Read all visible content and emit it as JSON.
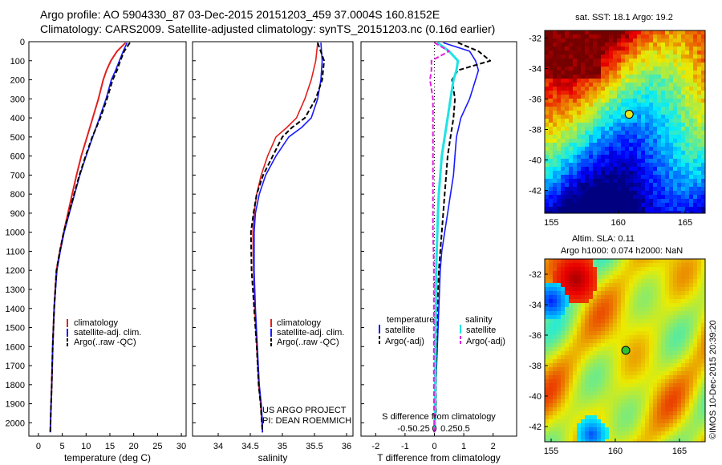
{
  "header": {
    "line1": "Argo profile: AO 5904330_87 03-Dec-2015 20151203_459 37.0004S 160.8152E",
    "line2": "Climatology: CARS2009. Satellite-adjusted climatology: synTS_20151203.nc (0.16d earlier)"
  },
  "colors": {
    "climatology": "#e02020",
    "satellite": "#1a1aff",
    "argo": "#000000",
    "temp_satellite": "#1a1aff",
    "sal_satellite": "#1fe3e3",
    "sal_argo": "#e020e0"
  },
  "panels": {
    "temperature": {
      "xlabel": "temperature (deg C)",
      "legend": [
        "climatology",
        "satellite-adj. clim.",
        "Argo(..raw -QC)"
      ]
    },
    "salinity": {
      "xlabel": "salinity",
      "legend": [
        "climatology",
        "satellite-adj. clim.",
        "Argo(..raw -QC)"
      ],
      "credit1": "US ARGO PROJECT",
      "credit2": "PI: DEAN ROEMMICH"
    },
    "difference": {
      "xlabel": "T difference from climatology",
      "top_label": "S difference from climatology",
      "legend_left_title": "temperature",
      "legend_left": [
        "satellite",
        "Argo(-adj)"
      ],
      "legend_right_title": "salinity",
      "legend_right": [
        "satellite",
        "Argo(-adj)"
      ]
    },
    "sst_map": {
      "title": "sat. SST: 18.1  Argo: 19.2"
    },
    "sla_map": {
      "title1": "Altim. SLA: 0.11",
      "title2": "Argo h1000: 0.074  h2000: NaN",
      "side_label": "©IMOS 10-Dec-2015 20:39:20"
    }
  },
  "chart_data": [
    {
      "type": "line",
      "title": "",
      "xlabel": "temperature (deg C)",
      "ylabel": "",
      "xlim": [
        -2,
        31
      ],
      "ylim": [
        2070,
        0
      ],
      "yticks": [
        0,
        100,
        200,
        300,
        400,
        500,
        600,
        700,
        800,
        900,
        1000,
        1100,
        1200,
        1300,
        1400,
        1500,
        1600,
        1700,
        1800,
        1900,
        2000
      ],
      "xticks": [
        0,
        5,
        10,
        15,
        20,
        25,
        30
      ],
      "series": [
        {
          "name": "climatology",
          "x": [
            18.3,
            16.5,
            15.2,
            14.3,
            13.6,
            12.6,
            11.4,
            10.2,
            9.0,
            8.0,
            7.1,
            6.2,
            5.3,
            4.5,
            3.8,
            3.3,
            3.0,
            2.8,
            2.6,
            2.5
          ],
          "y": [
            5,
            50,
            100,
            150,
            200,
            300,
            400,
            500,
            600,
            700,
            800,
            900,
            1000,
            1100,
            1200,
            1400,
            1600,
            1800,
            1950,
            2050
          ]
        },
        {
          "name": "satellite-adj. clim.",
          "x": [
            18.6,
            17.8,
            17.0,
            16.2,
            15.3,
            14.2,
            12.8,
            11.4,
            10.0,
            8.7,
            7.6,
            6.5,
            5.4,
            4.6,
            3.9,
            3.3,
            3.0,
            2.8,
            2.6,
            2.5
          ],
          "y": [
            5,
            50,
            100,
            150,
            200,
            300,
            400,
            500,
            600,
            700,
            800,
            900,
            1000,
            1100,
            1200,
            1400,
            1600,
            1800,
            1950,
            2050
          ]
        },
        {
          "name": "Argo(..raw -QC)",
          "x": [
            19.2,
            18.0,
            17.2,
            16.5,
            15.6,
            14.4,
            13.0,
            11.3,
            9.9,
            8.6,
            7.5,
            6.4,
            5.3,
            4.5,
            3.8,
            3.3,
            3.0,
            2.8,
            2.6,
            2.5
          ],
          "y": [
            5,
            50,
            100,
            150,
            200,
            300,
            400,
            500,
            600,
            700,
            800,
            900,
            1000,
            1100,
            1200,
            1400,
            1600,
            1800,
            1950,
            2050
          ]
        }
      ]
    },
    {
      "type": "line",
      "title": "",
      "xlabel": "salinity",
      "ylabel": "",
      "xlim": [
        33.6,
        36.1
      ],
      "ylim": [
        2070,
        0
      ],
      "xticks": [
        34,
        34.5,
        35,
        35.5,
        36
      ],
      "series": [
        {
          "name": "climatology",
          "x": [
            35.55,
            35.52,
            35.45,
            35.35,
            35.22,
            35.07,
            34.9,
            34.77,
            34.67,
            34.6,
            34.56,
            34.54,
            34.55,
            34.57,
            34.6,
            34.63,
            34.66,
            34.68,
            34.69
          ],
          "y": [
            5,
            100,
            200,
            300,
            400,
            450,
            500,
            600,
            700,
            800,
            900,
            1000,
            1200,
            1400,
            1600,
            1800,
            1900,
            2000,
            2050
          ]
        },
        {
          "name": "satellite-adj. clim.",
          "x": [
            35.6,
            35.62,
            35.6,
            35.55,
            35.45,
            35.3,
            35.1,
            34.9,
            34.74,
            34.64,
            34.58,
            34.56,
            34.56,
            34.58,
            34.61,
            34.64,
            34.67,
            34.69,
            34.69
          ],
          "y": [
            5,
            100,
            200,
            300,
            400,
            450,
            500,
            600,
            700,
            800,
            900,
            1000,
            1200,
            1400,
            1600,
            1800,
            1900,
            2000,
            2050
          ]
        },
        {
          "name": "Argo(..raw -QC)",
          "x": [
            35.55,
            35.65,
            35.62,
            35.52,
            35.35,
            35.15,
            35.0,
            34.85,
            34.7,
            34.6,
            34.55,
            34.51,
            34.52,
            34.56,
            34.6,
            34.63,
            34.66,
            34.68,
            34.69
          ],
          "y": [
            5,
            100,
            200,
            300,
            400,
            450,
            500,
            600,
            700,
            800,
            900,
            1000,
            1200,
            1400,
            1600,
            1800,
            1900,
            2000,
            2050
          ]
        }
      ]
    },
    {
      "type": "line",
      "title": "",
      "xlabel": "T difference from climatology",
      "top_label": "S difference from climatology",
      "ylabel": "",
      "xlim": [
        -2.5,
        2.8
      ],
      "ylim": [
        2070,
        0
      ],
      "xticks": [
        -2,
        -1,
        0,
        1,
        2
      ],
      "top_ticks": [
        "-0.5",
        "-0.25",
        "0",
        "0.25",
        "0.5"
      ],
      "series": [
        {
          "name": "temperature satellite",
          "x": [
            0.3,
            1.2,
            1.4,
            1.5,
            1.4,
            1.2,
            0.9,
            0.75,
            0.7,
            0.65,
            0.55,
            0.45,
            0.35,
            0.25,
            0.2,
            0.15,
            0.1,
            0.05,
            0.05,
            0.0
          ],
          "y": [
            5,
            50,
            100,
            150,
            200,
            300,
            400,
            500,
            600,
            700,
            800,
            900,
            1000,
            1100,
            1200,
            1400,
            1600,
            1800,
            1950,
            2050
          ]
        },
        {
          "name": "temperature Argo(-adj)",
          "x": [
            0.8,
            1.5,
            1.9,
            0.8,
            0.6,
            0.7,
            0.65,
            0.55,
            0.45,
            0.4,
            0.35,
            0.3,
            0.25,
            0.2,
            0.15,
            0.1,
            0.08,
            0.05,
            0.05,
            0.0
          ],
          "y": [
            5,
            50,
            100,
            150,
            200,
            300,
            400,
            500,
            600,
            700,
            800,
            900,
            1000,
            1100,
            1200,
            1400,
            1600,
            1800,
            1950,
            2050
          ]
        },
        {
          "name": "salinity satellite",
          "x": [
            0.1,
            0.5,
            0.8,
            0.75,
            0.65,
            0.55,
            0.45,
            0.35,
            0.25,
            0.2,
            0.15,
            0.12,
            0.1,
            0.08,
            0.06,
            0.05,
            0.04,
            0.03,
            0.02,
            0.0
          ],
          "y": [
            5,
            50,
            100,
            150,
            200,
            300,
            400,
            500,
            600,
            700,
            800,
            900,
            1000,
            1100,
            1200,
            1400,
            1600,
            1800,
            1950,
            2050
          ]
        },
        {
          "name": "salinity Argo(-adj)",
          "x": [
            0.0,
            0.5,
            -0.1,
            -0.1,
            -0.15,
            -0.05,
            -0.05,
            -0.05,
            -0.05,
            -0.05,
            -0.05,
            -0.05,
            -0.05,
            -0.03,
            -0.02,
            -0.02,
            -0.02,
            -0.02,
            -0.01,
            0.0
          ],
          "y": [
            5,
            50,
            100,
            150,
            200,
            300,
            400,
            500,
            600,
            700,
            800,
            900,
            1000,
            1100,
            1200,
            1400,
            1600,
            1800,
            1950,
            2050
          ]
        }
      ]
    },
    {
      "type": "heatmap",
      "title": "sat. SST: 18.1  Argo: 19.2",
      "xlim": [
        154.5,
        166.5
      ],
      "ylim": [
        -43.5,
        -31.5
      ],
      "xticks": [
        155,
        160,
        165
      ],
      "yticks": [
        -32,
        -34,
        -36,
        -38,
        -40,
        -42
      ],
      "marker": {
        "lon": 160.8152,
        "lat": -37.0004
      }
    },
    {
      "type": "heatmap",
      "title": "Altim. SLA: 0.11 / Argo h1000: 0.074  h2000: NaN",
      "xlim": [
        154.5,
        167
      ],
      "ylim": [
        -43,
        -31
      ],
      "xticks": [
        155,
        160,
        165
      ],
      "yticks": [
        -32,
        -34,
        -36,
        -38,
        -40,
        -42
      ],
      "marker": {
        "lon": 160.8152,
        "lat": -37.0004
      }
    }
  ]
}
